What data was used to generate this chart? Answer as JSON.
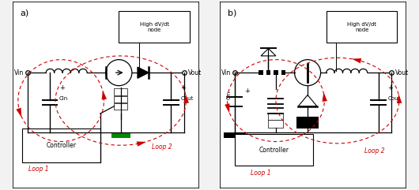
{
  "bg": "#f2f2f2",
  "lc": "#000000",
  "rc": "#cc0000",
  "gc": "#008800",
  "label_a": "a)",
  "label_b": "b)",
  "hvdt": "High dV/dt\nnode",
  "loop1": "Loop 1",
  "loop2": "Loop 2",
  "vin": "Vin",
  "vout": "Vout",
  "cin": "Cin",
  "cout": "Cout",
  "ctrl": "Controller"
}
